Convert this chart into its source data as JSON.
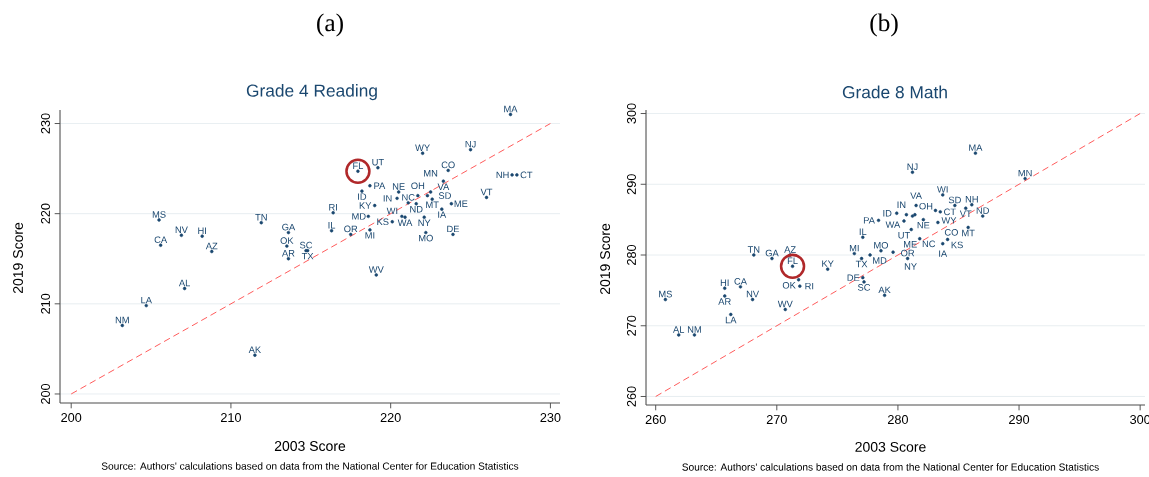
{
  "chart_data": [
    {
      "type": "scatter",
      "title": "(a)",
      "subtitle": "Grade 4 Reading",
      "xlabel": "2003 Score",
      "ylabel": "2019 Score",
      "annotations": [
        "Source: Authors' calculations based on data from the National Center for Education Statistics"
      ],
      "xlim": [
        199.3,
        230.6
      ],
      "ylim": [
        199,
        231.5
      ],
      "xticks": [
        200,
        210,
        220,
        230
      ],
      "yticks": [
        200,
        210,
        220,
        230
      ],
      "grid": "y",
      "series": [
        {
          "marker": "dot",
          "color": "#1a476f",
          "x": [
            205.5,
            205.6,
            206.9,
            208.2,
            208.8,
            207.1,
            204.7,
            203.2,
            211.5,
            211.9,
            213.6,
            213.5,
            213.6,
            214.7,
            214.8,
            227.5,
            222.0,
            225.0,
            217.95,
            219.2,
            218.7,
            218.2,
            223.6,
            223.3,
            227.6,
            227.9,
            226.0,
            220.5,
            222.5,
            220.4,
            221.7,
            222.3,
            221.1,
            221.6,
            222.6,
            223.8,
            223.2,
            219.0,
            216.4,
            218.6,
            220.9,
            220.7,
            222.1,
            220.1,
            216.3,
            217.5,
            218.7,
            222.2,
            223.9,
            219.1
          ],
          "values": [
            219.3,
            216.5,
            217.6,
            217.5,
            215.8,
            211.7,
            209.8,
            207.6,
            204.3,
            219.0,
            217.9,
            216.4,
            215.0,
            215.9,
            215.9,
            231.0,
            226.7,
            227.1,
            224.7,
            225.1,
            223.1,
            222.5,
            224.8,
            223.6,
            224.3,
            224.3,
            221.8,
            222.4,
            222.4,
            221.7,
            222.0,
            222.0,
            221.2,
            221.1,
            221.6,
            221.1,
            220.5,
            220.9,
            220.1,
            219.7,
            219.6,
            219.7,
            219.6,
            219.1,
            218.1,
            217.7,
            218.2,
            217.9,
            217.7,
            213.2
          ],
          "value_labels": [
            "MS",
            "CA",
            "NV",
            "HI",
            "AZ",
            "AL",
            "LA",
            "NM",
            "AK",
            "TN",
            "GA",
            "OK",
            "AR",
            "SC",
            "TX",
            "MA",
            "WY",
            "NJ",
            "FL",
            "UT",
            "PA",
            "ID",
            "CO",
            "VA",
            "NH",
            "CT",
            "VT",
            "NE",
            "MN",
            "IN",
            "OH",
            "SD",
            "NC",
            "ND",
            "MT",
            "ME",
            "IA",
            "KY",
            "RI",
            "MD",
            "WA",
            "WI",
            "NY",
            "KS",
            "IL",
            "OR",
            "MI",
            "MO",
            "DE",
            "WV"
          ]
        },
        {
          "type": "scatter",
          "marker": "circle",
          "color": "#b0282a",
          "x": [
            217.95
          ],
          "values": [
            224.7
          ]
        },
        {
          "type": "line",
          "line_style": "dashed",
          "color": "#ff5050",
          "x": [
            200,
            230
          ],
          "values": [
            200,
            230
          ]
        }
      ]
    },
    {
      "type": "scatter",
      "title": "(b)",
      "subtitle": "Grade 8 Math",
      "xlabel": "2003 Score",
      "ylabel": "2019 Score",
      "annotations": [
        "Source: Authors' calculations based on data from the National Center for Education Statistics"
      ],
      "xlim": [
        259.2,
        300.4
      ],
      "ylim": [
        258.8,
        300.5
      ],
      "xticks": [
        260,
        270,
        280,
        290,
        300
      ],
      "yticks": [
        260,
        270,
        280,
        290,
        300
      ],
      "grid": "y",
      "series": [
        {
          "marker": "dot",
          "color": "#1a476f",
          "x": [
            260.8,
            261.9,
            263.2,
            265.7,
            267.0,
            265.7,
            268.0,
            266.2,
            270.7,
            268.1,
            269.6,
            271.1,
            271.3,
            271.8,
            271.9,
            274.2,
            278.4,
            277.1,
            276.4,
            277.0,
            277.7,
            278.6,
            277.1,
            277.2,
            278.9,
            286.4,
            281.2,
            290.5,
            283.7,
            281.5,
            284.7,
            286.1,
            285.6,
            279.9,
            280.7,
            281.2,
            283.1,
            283.5,
            280.5,
            282.1,
            281.4,
            287.0,
            283.3,
            281.1,
            285.8,
            281.8,
            284.1,
            283.7,
            279.6,
            280.8
          ],
          "values": [
            273.7,
            268.7,
            268.7,
            275.3,
            275.5,
            274.2,
            273.7,
            271.6,
            272.3,
            280.0,
            279.5,
            280.0,
            278.4,
            276.5,
            275.6,
            278.0,
            284.9,
            282.5,
            280.2,
            279.5,
            280.0,
            280.6,
            276.8,
            276.2,
            274.3,
            294.4,
            291.7,
            290.8,
            288.5,
            287.0,
            287.0,
            287.1,
            286.6,
            285.9,
            285.7,
            285.5,
            286.3,
            286.1,
            284.8,
            285.0,
            285.7,
            285.5,
            284.6,
            283.6,
            283.9,
            282.3,
            282.2,
            281.6,
            280.4,
            279.5
          ],
          "value_labels": [
            "MS",
            "AL",
            "NM",
            "HI",
            "CA",
            "AR",
            "NV",
            "LA",
            "WV",
            "TN",
            "GA",
            "AZ",
            "FL",
            "OK",
            "RI",
            "KY",
            "PA",
            "IL",
            "MI",
            "TX",
            "MD",
            "MO",
            "DE",
            "SC",
            "AK",
            "MA",
            "NJ",
            "MN",
            "WI",
            "VA",
            "SD",
            "NH",
            "VT",
            "ID",
            "WA",
            "OH",
            "WY",
            "CT",
            "UT",
            "NE",
            "IN",
            "ND",
            "CO",
            "NC",
            "MT",
            "ME",
            "KS",
            "IA",
            "NY",
            "OR"
          ]
        },
        {
          "type": "scatter",
          "marker": "circle",
          "color": "#b0282a",
          "x": [
            271.3
          ],
          "values": [
            278.4
          ]
        },
        {
          "type": "line",
          "line_style": "dashed",
          "color": "#ff5050",
          "x": [
            260,
            300
          ],
          "values": [
            260,
            300
          ]
        }
      ]
    }
  ]
}
